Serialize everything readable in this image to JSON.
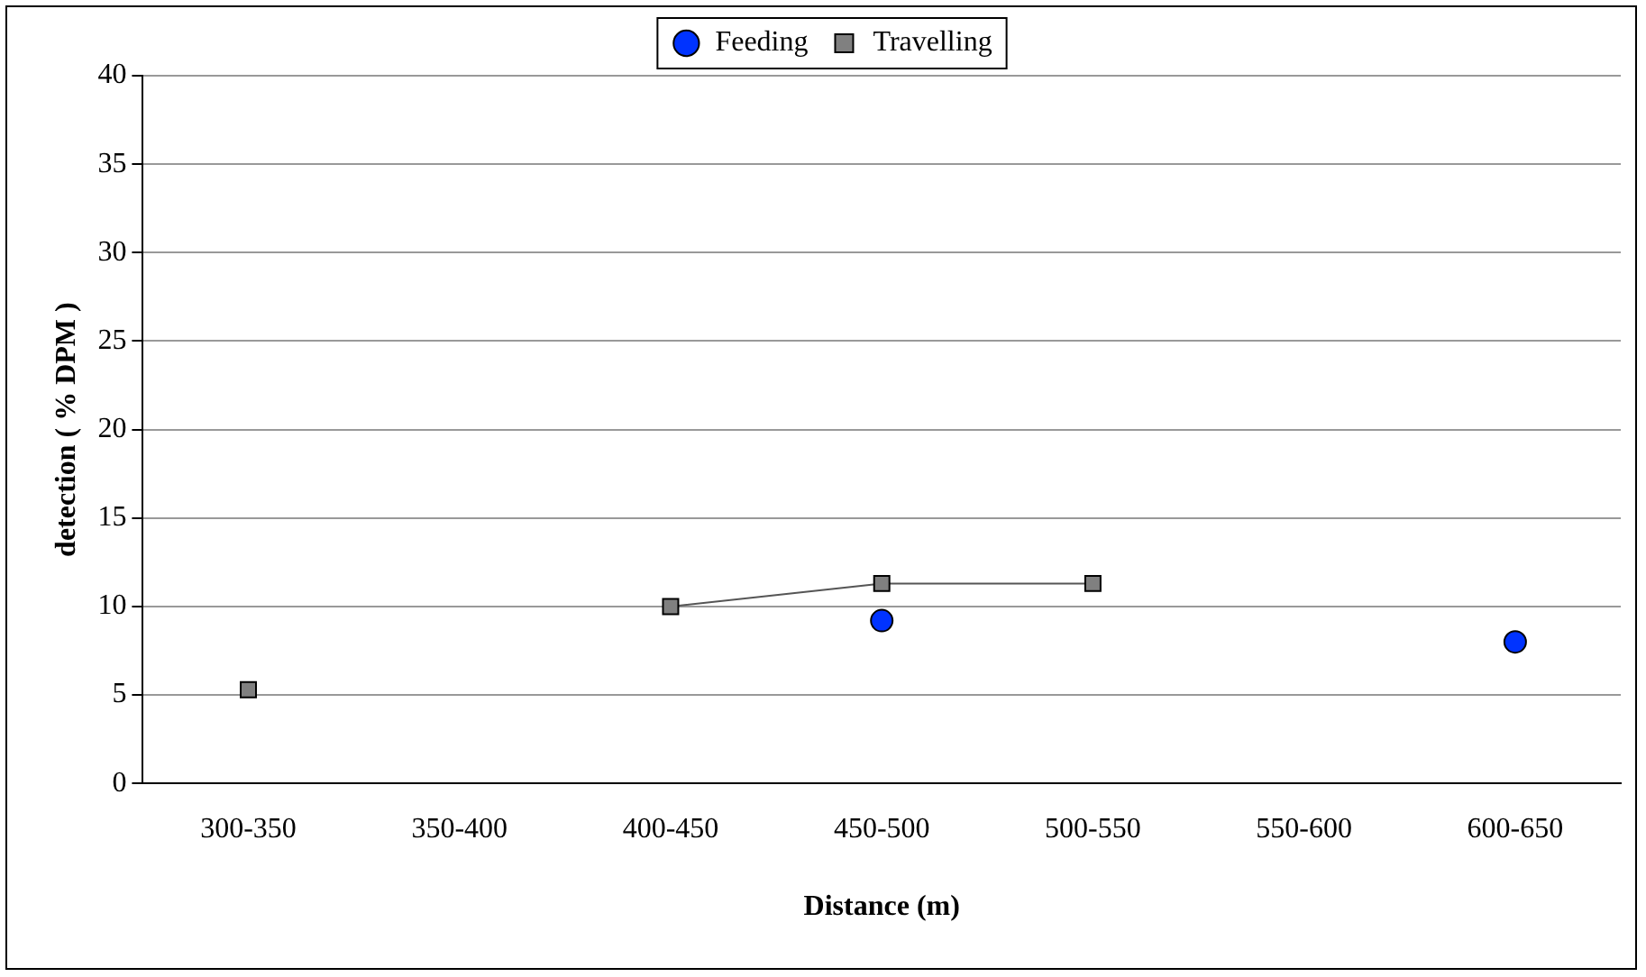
{
  "chart_data": {
    "type": "line",
    "xlabel": "Distance (m)",
    "ylabel": "detection ( % DPM )",
    "categories": [
      "300-350",
      "350-400",
      "400-450",
      "450-500",
      "500-550",
      "550-600",
      "600-650"
    ],
    "series": [
      {
        "name": "Feeding",
        "type": "scatter",
        "color": "#0033ff",
        "marker": "circle",
        "values": [
          null,
          null,
          null,
          9.2,
          null,
          null,
          8
        ]
      },
      {
        "name": "Travelling",
        "color": "#808080",
        "marker": "square",
        "values": [
          5.3,
          null,
          10,
          11.3,
          11.3,
          null,
          null
        ]
      }
    ],
    "ylim": [
      0,
      40
    ],
    "yticks": [
      0,
      5,
      10,
      15,
      20,
      25,
      30,
      35,
      40
    ],
    "grid": "y",
    "legend": "top"
  }
}
